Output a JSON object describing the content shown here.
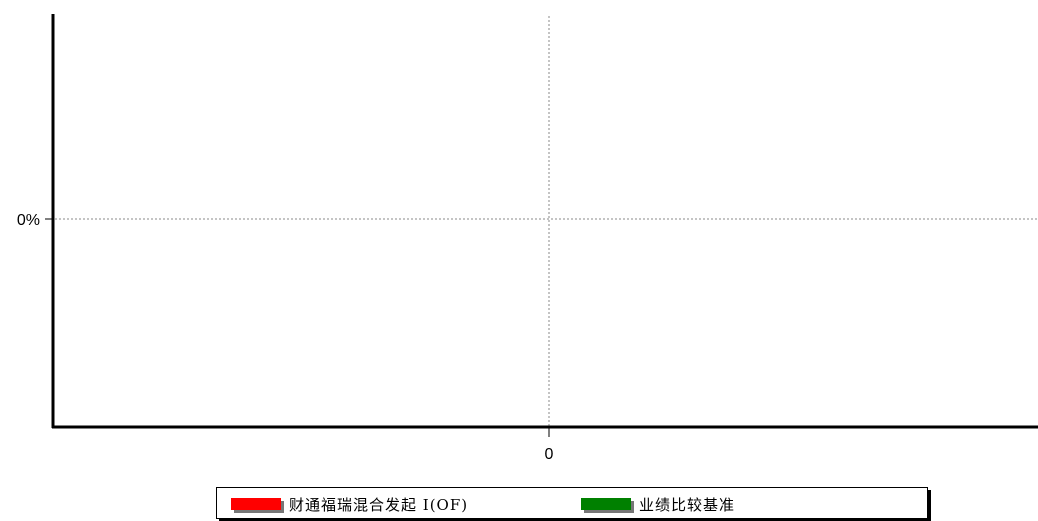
{
  "chart_data": {
    "type": "line",
    "x_ticks": [
      "0"
    ],
    "y_ticks": [
      "0%"
    ],
    "grid": true,
    "legend_position": "bottom",
    "series": [
      {
        "name": "财通福瑞混合发起 I(OF)",
        "color": "#ff0000",
        "values": []
      },
      {
        "name": "业绩比较基准",
        "color": "#008000",
        "values": []
      }
    ]
  }
}
